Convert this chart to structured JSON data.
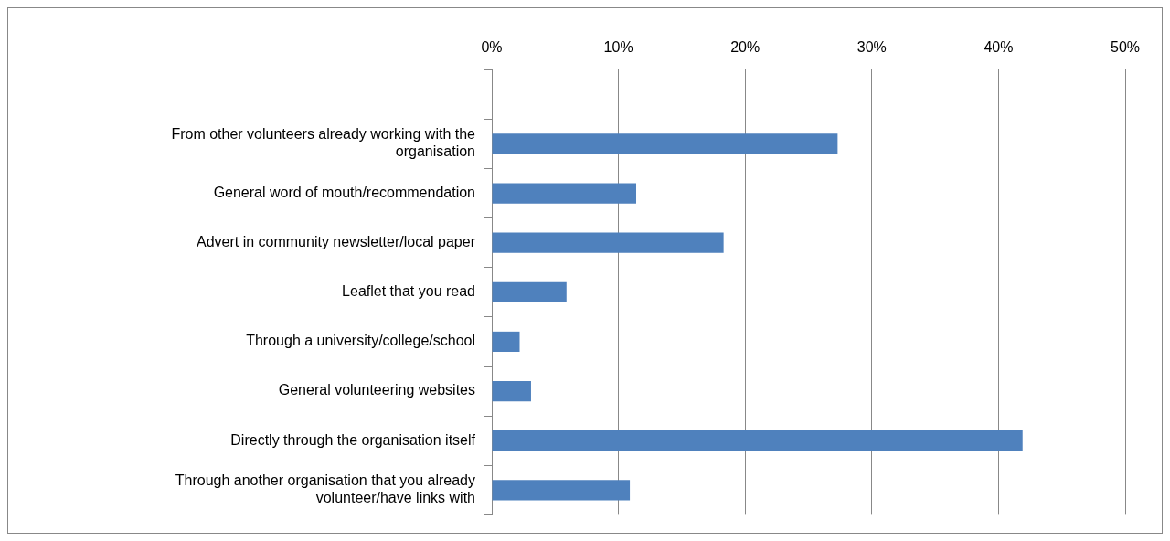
{
  "chart_data": {
    "type": "bar",
    "orientation": "horizontal",
    "categories": [
      null,
      "From other volunteers already working with the organisation",
      "General word of mouth/recommendation",
      "Advert in community newsletter/local paper",
      "Leaflet that you read",
      "Through a university/college/school",
      "General volunteering websites",
      "Directly through the organisation itself",
      "Through another organisation that you already volunteer/have links with"
    ],
    "values": [
      null,
      27.3,
      11.4,
      18.3,
      5.9,
      2.2,
      3.1,
      41.9,
      10.9
    ],
    "color": "#4f81bd",
    "xlim": [
      0,
      50
    ],
    "xticks": [
      {
        "value": 0,
        "label": "0%"
      },
      {
        "value": 10,
        "label": "10%"
      },
      {
        "value": 20,
        "label": "20%"
      },
      {
        "value": 30,
        "label": "30%"
      },
      {
        "value": 40,
        "label": "40%"
      },
      {
        "value": 50,
        "label": "50%"
      }
    ],
    "grid": "x"
  }
}
